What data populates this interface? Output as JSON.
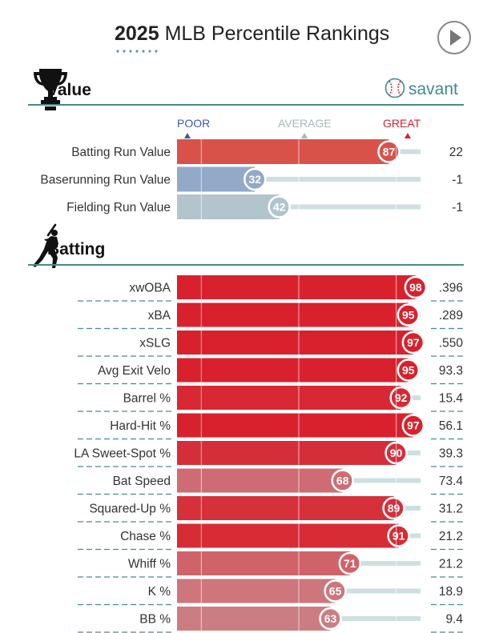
{
  "page": {
    "title_year": "2025",
    "title_rest": "MLB Percentile Rankings",
    "brand": "savant"
  },
  "scale": {
    "poor": "POOR",
    "average": "AVERAGE",
    "great": "GREAT"
  },
  "colors": {
    "great": "#d8212d",
    "poor": "#3b6fb6",
    "average": "#bfbfbf",
    "accent": "#3f8a8f",
    "track": "#c8dfe0"
  },
  "chart_data": [
    {
      "type": "bar",
      "title": "Value",
      "xlim": [
        0,
        100
      ],
      "categories": [
        "Batting Run Value",
        "Baserunning Run Value",
        "Fielding Run Value"
      ],
      "values": [
        87,
        32,
        42
      ],
      "stat_values": [
        "22",
        "-1",
        "-1"
      ]
    },
    {
      "type": "bar",
      "title": "Batting",
      "xlim": [
        0,
        100
      ],
      "categories": [
        "xwOBA",
        "xBA",
        "xSLG",
        "Avg Exit Velo",
        "Barrel %",
        "Hard-Hit %",
        "LA Sweet-Spot %",
        "Bat Speed",
        "Squared-Up %",
        "Chase %",
        "Whiff %",
        "K %",
        "BB %"
      ],
      "values": [
        98,
        95,
        97,
        95,
        92,
        97,
        90,
        68,
        89,
        91,
        71,
        65,
        63
      ],
      "stat_values": [
        ".396",
        ".289",
        ".550",
        "93.3",
        "15.4",
        "56.1",
        "39.3",
        "73.4",
        "31.2",
        "21.2",
        "21.2",
        "18.9",
        "9.4"
      ]
    }
  ]
}
